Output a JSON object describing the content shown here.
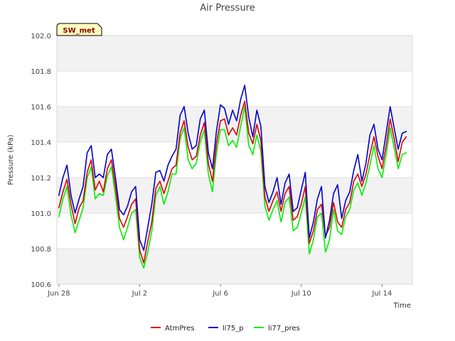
{
  "chart_data": {
    "type": "line",
    "title": "Air Pressure",
    "xlabel": "Time",
    "ylabel": "Pressure (kPa)",
    "site_label": "SW_met",
    "ylim": [
      100.6,
      102.0
    ],
    "yticks": [
      "100.6",
      "100.8",
      "101.0",
      "101.2",
      "101.4",
      "101.6",
      "101.8",
      "102.0"
    ],
    "xlim_days": [
      -0.1,
      17.5
    ],
    "xticks": [
      {
        "label": "Jun 28",
        "day": 0
      },
      {
        "label": "Jul 2",
        "day": 4
      },
      {
        "label": "Jul 6",
        "day": 8
      },
      {
        "label": "Jul 10",
        "day": 12
      },
      {
        "label": "Jul 14",
        "day": 16
      }
    ],
    "x_unit": "days since Jun 28",
    "colors": {
      "band": "#f2f2f2",
      "grid": "#e0e0e0",
      "badge_fill": "#ffffc0",
      "badge_text": "#8b0000"
    },
    "series": [
      {
        "name": "AtmPres",
        "color": "#dd0000",
        "x": [
          0.0,
          0.2,
          0.4,
          0.6,
          0.8,
          1.0,
          1.2,
          1.4,
          1.6,
          1.8,
          2.0,
          2.2,
          2.4,
          2.6,
          2.8,
          3.0,
          3.2,
          3.4,
          3.6,
          3.8,
          4.0,
          4.2,
          4.4,
          4.6,
          4.8,
          5.0,
          5.2,
          5.4,
          5.6,
          5.8,
          6.0,
          6.2,
          6.4,
          6.6,
          6.8,
          7.0,
          7.2,
          7.4,
          7.6,
          7.8,
          8.0,
          8.2,
          8.4,
          8.6,
          8.8,
          9.0,
          9.2,
          9.4,
          9.6,
          9.8,
          10.0,
          10.2,
          10.4,
          10.6,
          10.8,
          11.0,
          11.2,
          11.4,
          11.6,
          11.8,
          12.0,
          12.2,
          12.4,
          12.6,
          12.8,
          13.0,
          13.2,
          13.4,
          13.6,
          13.8,
          14.0,
          14.2,
          14.4,
          14.6,
          14.8,
          15.0,
          15.2,
          15.4,
          15.6,
          15.8,
          16.0,
          16.2,
          16.4,
          16.6,
          16.8,
          17.0,
          17.2
        ],
        "values": [
          101.03,
          101.12,
          101.19,
          101.05,
          100.94,
          101.03,
          101.07,
          101.23,
          101.3,
          101.13,
          101.18,
          101.12,
          101.25,
          101.3,
          101.15,
          100.97,
          100.92,
          100.98,
          101.05,
          101.08,
          100.79,
          100.72,
          100.84,
          100.95,
          101.14,
          101.18,
          101.11,
          101.18,
          101.25,
          101.27,
          101.45,
          101.52,
          101.37,
          101.3,
          101.32,
          101.44,
          101.51,
          101.28,
          101.18,
          101.39,
          101.52,
          101.53,
          101.44,
          101.48,
          101.44,
          101.55,
          101.63,
          101.45,
          101.39,
          101.5,
          101.41,
          101.09,
          101.01,
          101.07,
          101.12,
          101.01,
          101.11,
          101.15,
          100.96,
          100.98,
          101.05,
          101.15,
          100.83,
          100.9,
          101.02,
          101.05,
          100.87,
          100.92,
          101.06,
          100.95,
          100.92,
          101.02,
          101.06,
          101.18,
          101.22,
          101.15,
          101.22,
          101.33,
          101.43,
          101.32,
          101.25,
          101.38,
          101.53,
          101.42,
          101.29,
          101.4,
          101.43
        ]
      },
      {
        "name": "li75_p",
        "color": "#0000cc",
        "x": [
          0.0,
          0.2,
          0.4,
          0.6,
          0.8,
          1.0,
          1.2,
          1.4,
          1.6,
          1.8,
          2.0,
          2.2,
          2.4,
          2.6,
          2.8,
          3.0,
          3.2,
          3.4,
          3.6,
          3.8,
          4.0,
          4.2,
          4.4,
          4.6,
          4.8,
          5.0,
          5.2,
          5.4,
          5.6,
          5.8,
          6.0,
          6.2,
          6.4,
          6.6,
          6.8,
          7.0,
          7.2,
          7.4,
          7.6,
          7.8,
          8.0,
          8.2,
          8.4,
          8.6,
          8.8,
          9.0,
          9.2,
          9.4,
          9.6,
          9.8,
          10.0,
          10.2,
          10.4,
          10.6,
          10.8,
          11.0,
          11.2,
          11.4,
          11.6,
          11.8,
          12.0,
          12.2,
          12.4,
          12.6,
          12.8,
          13.0,
          13.2,
          13.4,
          13.6,
          13.8,
          14.0,
          14.2,
          14.4,
          14.6,
          14.8,
          15.0,
          15.2,
          15.4,
          15.6,
          15.8,
          16.0,
          16.2,
          16.4,
          16.6,
          16.8,
          17.0,
          17.2
        ],
        "values": [
          101.1,
          101.2,
          101.27,
          101.1,
          101.0,
          101.08,
          101.15,
          101.34,
          101.38,
          101.2,
          101.22,
          101.2,
          101.33,
          101.36,
          101.2,
          101.02,
          100.99,
          101.04,
          101.12,
          101.15,
          100.85,
          100.79,
          100.92,
          101.05,
          101.23,
          101.24,
          101.18,
          101.27,
          101.32,
          101.36,
          101.55,
          101.6,
          101.45,
          101.36,
          101.38,
          101.53,
          101.58,
          101.34,
          101.25,
          101.46,
          101.61,
          101.59,
          101.5,
          101.58,
          101.52,
          101.64,
          101.72,
          101.54,
          101.43,
          101.58,
          101.49,
          101.15,
          101.06,
          101.12,
          101.2,
          101.05,
          101.17,
          101.22,
          101.01,
          101.03,
          101.13,
          101.23,
          100.86,
          100.95,
          101.08,
          101.15,
          100.86,
          100.96,
          101.11,
          101.16,
          100.97,
          101.07,
          101.12,
          101.24,
          101.33,
          101.18,
          101.28,
          101.44,
          101.5,
          101.36,
          101.3,
          101.45,
          101.6,
          101.48,
          101.36,
          101.45,
          101.46
        ]
      },
      {
        "name": "li77_pres",
        "color": "#00ee00",
        "x": [
          0.0,
          0.2,
          0.4,
          0.6,
          0.8,
          1.0,
          1.2,
          1.4,
          1.6,
          1.8,
          2.0,
          2.2,
          2.4,
          2.6,
          2.8,
          3.0,
          3.2,
          3.4,
          3.6,
          3.8,
          4.0,
          4.2,
          4.4,
          4.6,
          4.8,
          5.0,
          5.2,
          5.4,
          5.6,
          5.8,
          6.0,
          6.2,
          6.4,
          6.6,
          6.8,
          7.0,
          7.2,
          7.4,
          7.6,
          7.8,
          8.0,
          8.2,
          8.4,
          8.6,
          8.8,
          9.0,
          9.2,
          9.4,
          9.6,
          9.8,
          10.0,
          10.2,
          10.4,
          10.6,
          10.8,
          11.0,
          11.2,
          11.4,
          11.6,
          11.8,
          12.0,
          12.2,
          12.4,
          12.6,
          12.8,
          13.0,
          13.2,
          13.4,
          13.6,
          13.8,
          14.0,
          14.2,
          14.4,
          14.6,
          14.8,
          15.0,
          15.2,
          15.4,
          15.6,
          15.8,
          16.0,
          16.2,
          16.4,
          16.6,
          16.8,
          17.0,
          17.2
        ],
        "values": [
          100.98,
          101.08,
          101.15,
          100.99,
          100.89,
          100.96,
          101.03,
          101.2,
          101.26,
          101.08,
          101.11,
          101.1,
          101.21,
          101.26,
          101.1,
          100.92,
          100.85,
          100.92,
          101.0,
          101.02,
          100.75,
          100.69,
          100.78,
          100.9,
          101.1,
          101.15,
          101.05,
          101.12,
          101.22,
          101.22,
          101.42,
          101.48,
          101.3,
          101.25,
          101.28,
          101.4,
          101.47,
          101.22,
          101.12,
          101.34,
          101.47,
          101.47,
          101.38,
          101.41,
          101.37,
          101.49,
          101.6,
          101.38,
          101.33,
          101.44,
          101.35,
          101.04,
          100.96,
          101.02,
          101.07,
          100.95,
          101.06,
          101.09,
          100.9,
          100.92,
          101.0,
          101.09,
          100.77,
          100.85,
          100.98,
          101.0,
          100.78,
          100.85,
          101.02,
          100.9,
          100.88,
          100.98,
          101.02,
          101.13,
          101.17,
          101.1,
          101.17,
          101.27,
          101.38,
          101.25,
          101.2,
          101.33,
          101.48,
          101.37,
          101.25,
          101.33,
          101.34
        ]
      }
    ]
  }
}
